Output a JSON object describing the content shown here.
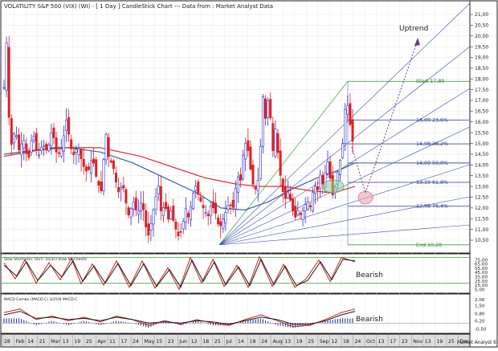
{
  "header": {
    "title": "VOLATILITY S&P 500 (VIX) (WI) - [ 1 Day ] CandleStick Chart --- Data from : Market Analyst Data"
  },
  "panels": {
    "stochastic_label": "Slow Stochastic (SST) 10/3/3 Slow Stochastic",
    "macd_label": "MACD Combo (MACD-C) 3/25/6 MACD-C"
  },
  "annotations": {
    "uptrend": "Uptrend",
    "bearish_stoch": "Bearish",
    "bearish_macd": "Bearish"
  },
  "footer": {
    "brand": "Market Analyst 6"
  },
  "colors": {
    "up_candle": "#3030c8",
    "down_candle": "#e02020",
    "ma_short": "#3a5fa8",
    "ma_long": "#d83030",
    "fan": "#3a4fb0",
    "fib": "#2a3a9a",
    "green_line": "#3aa03a",
    "stoch_k": "#cc2020",
    "stoch_d": "#1a1a1a",
    "grid": "#e4e4e4"
  },
  "chart_data": [
    {
      "type": "candlestick",
      "title": "VOLATILITY S&P 500 (VIX) (WI) - [ 1 Day ] CandleStick Chart --- Data from : Market Analyst Data",
      "y_ticks": [
        "10,50",
        "11,00",
        "11,50",
        "12,00",
        "12,50",
        "13,00",
        "13,50",
        "14,00",
        "14,50",
        "15,00",
        "15,50",
        "16,00",
        "16,50",
        "17,00",
        "17,50",
        "18,00",
        "18,50",
        "19,00",
        "19,50",
        "20,00",
        "20,50",
        "21,00"
      ],
      "ylim": [
        10.0,
        21.5
      ],
      "x_ticks": [
        "28",
        "Feb",
        "14",
        "21",
        "Mar",
        "13",
        "19",
        "25",
        "Apr",
        "11",
        "17",
        "24",
        "May",
        "15",
        "23",
        "Jun",
        "12",
        "18",
        "25",
        "Jul",
        "14",
        "18",
        "24",
        "Aug",
        "13",
        "19",
        "25",
        "Sep",
        "12",
        "18",
        "24",
        "Oct",
        "13",
        "17",
        "23",
        "Nov",
        "13",
        "19",
        "25",
        "Dec"
      ],
      "close_path": [
        {
          "x": 0,
          "close": 17.6
        },
        {
          "x": 3,
          "close": 19.8
        },
        {
          "x": 6,
          "close": 16.3
        },
        {
          "x": 9,
          "close": 14.9
        },
        {
          "x": 14,
          "close": 15.7
        },
        {
          "x": 19,
          "close": 14.6
        },
        {
          "x": 24,
          "close": 15.3
        },
        {
          "x": 30,
          "close": 14.1
        },
        {
          "x": 36,
          "close": 15.6
        },
        {
          "x": 42,
          "close": 14.3
        },
        {
          "x": 48,
          "close": 15.0
        },
        {
          "x": 54,
          "close": 14.6
        },
        {
          "x": 60,
          "close": 15.7
        },
        {
          "x": 66,
          "close": 14.4
        },
        {
          "x": 72,
          "close": 14.8
        },
        {
          "x": 78,
          "close": 16.2
        },
        {
          "x": 82,
          "close": 15.0
        },
        {
          "x": 86,
          "close": 14.4
        },
        {
          "x": 92,
          "close": 14.9
        },
        {
          "x": 98,
          "close": 14.0
        },
        {
          "x": 104,
          "close": 13.6
        },
        {
          "x": 110,
          "close": 14.4
        },
        {
          "x": 116,
          "close": 13.2
        },
        {
          "x": 122,
          "close": 12.7
        },
        {
          "x": 126,
          "close": 15.8
        },
        {
          "x": 130,
          "close": 14.4
        },
        {
          "x": 136,
          "close": 13.9
        },
        {
          "x": 142,
          "close": 12.7
        },
        {
          "x": 148,
          "close": 13.1
        },
        {
          "x": 152,
          "close": 12.2
        },
        {
          "x": 156,
          "close": 11.5
        },
        {
          "x": 160,
          "close": 12.4
        },
        {
          "x": 166,
          "close": 11.7
        },
        {
          "x": 172,
          "close": 12.4
        },
        {
          "x": 176,
          "close": 11.2
        },
        {
          "x": 180,
          "close": 10.7
        },
        {
          "x": 186,
          "close": 11.9
        },
        {
          "x": 192,
          "close": 13.1
        },
        {
          "x": 196,
          "close": 11.6
        },
        {
          "x": 200,
          "close": 12.3
        },
        {
          "x": 204,
          "close": 11.4
        },
        {
          "x": 208,
          "close": 11.9
        },
        {
          "x": 212,
          "close": 11.2
        },
        {
          "x": 218,
          "close": 10.6
        },
        {
          "x": 222,
          "close": 11.1
        },
        {
          "x": 226,
          "close": 12.0
        },
        {
          "x": 230,
          "close": 11.5
        },
        {
          "x": 234,
          "close": 12.4
        },
        {
          "x": 238,
          "close": 13.1
        },
        {
          "x": 242,
          "close": 12.6
        },
        {
          "x": 248,
          "close": 12.0
        },
        {
          "x": 254,
          "close": 11.6
        },
        {
          "x": 258,
          "close": 12.2
        },
        {
          "x": 264,
          "close": 11.7
        },
        {
          "x": 268,
          "close": 11.0
        },
        {
          "x": 274,
          "close": 11.6
        },
        {
          "x": 280,
          "close": 12.2
        },
        {
          "x": 286,
          "close": 12.0
        },
        {
          "x": 290,
          "close": 13.6
        },
        {
          "x": 294,
          "close": 13.1
        },
        {
          "x": 298,
          "close": 14.6
        },
        {
          "x": 302,
          "close": 15.2
        },
        {
          "x": 306,
          "close": 14.0
        },
        {
          "x": 310,
          "close": 13.1
        },
        {
          "x": 314,
          "close": 12.8
        },
        {
          "x": 318,
          "close": 13.7
        },
        {
          "x": 322,
          "close": 17.3
        },
        {
          "x": 326,
          "close": 16.0
        },
        {
          "x": 330,
          "close": 17.5
        },
        {
          "x": 334,
          "close": 14.4
        },
        {
          "x": 338,
          "close": 15.7
        },
        {
          "x": 342,
          "close": 14.2
        },
        {
          "x": 346,
          "close": 12.9
        },
        {
          "x": 350,
          "close": 12.4
        },
        {
          "x": 354,
          "close": 12.8
        },
        {
          "x": 358,
          "close": 12.1
        },
        {
          "x": 362,
          "close": 11.5
        },
        {
          "x": 366,
          "close": 11.9
        },
        {
          "x": 370,
          "close": 11.6
        },
        {
          "x": 374,
          "close": 12.1
        },
        {
          "x": 378,
          "close": 12.3
        },
        {
          "x": 382,
          "close": 12.0
        },
        {
          "x": 386,
          "close": 13.2
        },
        {
          "x": 390,
          "close": 12.7
        },
        {
          "x": 394,
          "close": 13.6
        },
        {
          "x": 398,
          "close": 12.9
        },
        {
          "x": 402,
          "close": 14.4
        },
        {
          "x": 406,
          "close": 13.4
        },
        {
          "x": 410,
          "close": 12.4
        },
        {
          "x": 414,
          "close": 13.4
        },
        {
          "x": 418,
          "close": 14.1
        },
        {
          "x": 422,
          "close": 15.1
        },
        {
          "x": 426,
          "close": 17.3
        },
        {
          "x": 430,
          "close": 16.1
        },
        {
          "x": 434,
          "close": 15.1
        },
        {
          "x": 437,
          "close": 14.4
        }
      ],
      "moving_averages": [
        {
          "name": "",
          "color": "#3a5fa8",
          "points": [
            [
              0,
              14.5
            ],
            [
              40,
              14.7
            ],
            [
              80,
              14.8
            ],
            [
              120,
              14.6
            ],
            [
              160,
              14.1
            ],
            [
              200,
              13.4
            ],
            [
              240,
              12.7
            ],
            [
              270,
              12.0
            ],
            [
              300,
              11.9
            ],
            [
              330,
              12.3
            ],
            [
              360,
              12.9
            ],
            [
              390,
              13.4
            ],
            [
              420,
              13.8
            ],
            [
              437,
              14.1
            ]
          ]
        },
        {
          "name": "",
          "color": "#d83030",
          "points": [
            [
              0,
              14.4
            ],
            [
              60,
              14.8
            ],
            [
              120,
              14.8
            ],
            [
              170,
              14.4
            ],
            [
              210,
              13.9
            ],
            [
              250,
              13.4
            ],
            [
              290,
              13.1
            ],
            [
              320,
              13.0
            ],
            [
              350,
              13.0
            ],
            [
              380,
              12.8
            ],
            [
              410,
              12.7
            ],
            [
              437,
              13.0
            ]
          ]
        }
      ],
      "fib_levels": [
        {
          "label": "Start 17,89",
          "value": 17.89,
          "color": "#2a8a2a"
        },
        {
          "label": "16,09 23,6%",
          "value": 16.09
        },
        {
          "label": "14,98 38,2%",
          "value": 14.98
        },
        {
          "label": "14,09 50,0%",
          "value": 14.09
        },
        {
          "label": "13,19 61,8%",
          "value": 13.19
        },
        {
          "label": "12,08 76,4%",
          "value": 12.08
        },
        {
          "label": "End 10,28",
          "value": 10.28,
          "color": "#2a8a2a"
        }
      ],
      "annotations": [
        "Uptrend"
      ]
    },
    {
      "type": "line",
      "title": "Slow Stochastic (SST) 10/3/3 Slow Stochastic",
      "y_ticks": [
        "5,00",
        "15,00",
        "25,00",
        "35,00",
        "45,00",
        "55,00",
        "65,00",
        "75,00"
      ],
      "ylim": [
        0,
        85
      ],
      "series": [
        {
          "name": "",
          "color": "#cc2020",
          "points": [
            [
              0,
              68
            ],
            [
              14,
              30
            ],
            [
              26,
              75
            ],
            [
              40,
              20
            ],
            [
              56,
              68
            ],
            [
              70,
              28
            ],
            [
              84,
              78
            ],
            [
              96,
              18
            ],
            [
              110,
              65
            ],
            [
              124,
              15
            ],
            [
              140,
              72
            ],
            [
              156,
              10
            ],
            [
              172,
              72
            ],
            [
              188,
              8
            ],
            [
              204,
              56
            ],
            [
              218,
              5
            ],
            [
              232,
              80
            ],
            [
              246,
              20
            ],
            [
              260,
              76
            ],
            [
              274,
              12
            ],
            [
              290,
              62
            ],
            [
              304,
              10
            ],
            [
              318,
              82
            ],
            [
              334,
              12
            ],
            [
              348,
              64
            ],
            [
              362,
              10
            ],
            [
              376,
              30
            ],
            [
              392,
              74
            ],
            [
              406,
              24
            ],
            [
              420,
              80
            ],
            [
              437,
              70
            ]
          ]
        },
        {
          "name": "",
          "color": "#1a1a1a",
          "points": [
            [
              0,
              62
            ],
            [
              16,
              36
            ],
            [
              28,
              70
            ],
            [
              42,
              26
            ],
            [
              58,
              62
            ],
            [
              72,
              34
            ],
            [
              86,
              72
            ],
            [
              98,
              24
            ],
            [
              112,
              60
            ],
            [
              126,
              20
            ],
            [
              142,
              66
            ],
            [
              158,
              14
            ],
            [
              174,
              66
            ],
            [
              190,
              12
            ],
            [
              206,
              52
            ],
            [
              220,
              10
            ],
            [
              234,
              74
            ],
            [
              248,
              24
            ],
            [
              262,
              70
            ],
            [
              276,
              16
            ],
            [
              292,
              58
            ],
            [
              306,
              14
            ],
            [
              320,
              76
            ],
            [
              336,
              16
            ],
            [
              350,
              60
            ],
            [
              364,
              14
            ],
            [
              378,
              26
            ],
            [
              394,
              70
            ],
            [
              408,
              28
            ],
            [
              422,
              76
            ],
            [
              437,
              72
            ]
          ]
        }
      ],
      "annotations": [
        "Bearish"
      ]
    },
    {
      "type": "bar",
      "title": "MACD Combo (MACD-C) 3/25/6 MACD-C",
      "y_ticks": [
        "2,00",
        "1,50",
        "0,80",
        "0,20",
        "-0,50"
      ],
      "ylim": [
        -0.8,
        2.2
      ],
      "series": [
        {
          "name": "",
          "color": "#cc2020",
          "points": [
            [
              0,
              0.9
            ],
            [
              20,
              1.2
            ],
            [
              40,
              0.3
            ],
            [
              60,
              0.6
            ],
            [
              80,
              0.2
            ],
            [
              100,
              0.5
            ],
            [
              120,
              0.1
            ],
            [
              140,
              0.6
            ],
            [
              160,
              0.3
            ],
            [
              180,
              -0.2
            ],
            [
              200,
              0.2
            ],
            [
              220,
              -0.1
            ],
            [
              240,
              0.3
            ],
            [
              260,
              0.0
            ],
            [
              280,
              -0.2
            ],
            [
              300,
              0.3
            ],
            [
              320,
              0.7
            ],
            [
              340,
              0.2
            ],
            [
              360,
              -0.3
            ],
            [
              380,
              -0.2
            ],
            [
              400,
              0.3
            ],
            [
              420,
              0.9
            ],
            [
              437,
              1.2
            ]
          ]
        },
        {
          "name": "",
          "color": "#1a1a1a",
          "points": [
            [
              0,
              0.7
            ],
            [
              20,
              1.0
            ],
            [
              40,
              0.4
            ],
            [
              60,
              0.5
            ],
            [
              80,
              0.3
            ],
            [
              100,
              0.4
            ],
            [
              120,
              0.2
            ],
            [
              140,
              0.5
            ],
            [
              160,
              0.3
            ],
            [
              180,
              0.0
            ],
            [
              200,
              0.1
            ],
            [
              220,
              0.0
            ],
            [
              240,
              0.2
            ],
            [
              260,
              0.1
            ],
            [
              280,
              -0.1
            ],
            [
              300,
              0.2
            ],
            [
              320,
              0.5
            ],
            [
              340,
              0.3
            ],
            [
              360,
              -0.1
            ],
            [
              380,
              -0.1
            ],
            [
              400,
              0.2
            ],
            [
              420,
              0.7
            ],
            [
              437,
              1.0
            ]
          ]
        }
      ],
      "annotations": [
        "Bearish"
      ]
    }
  ]
}
